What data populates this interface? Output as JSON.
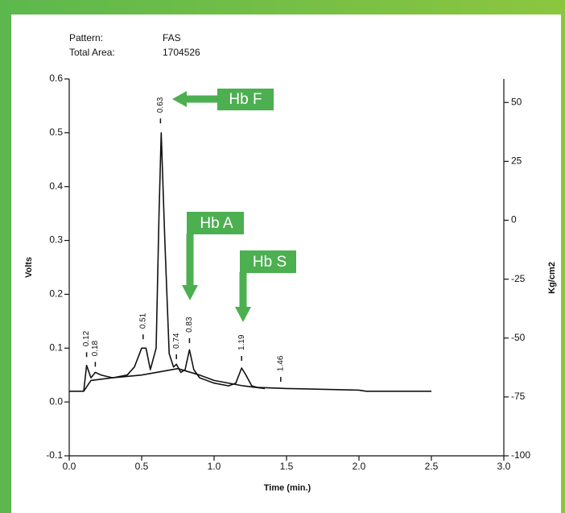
{
  "chart_data": {
    "type": "line",
    "info": [
      {
        "label": "Pattern:",
        "value": "FAS"
      },
      {
        "label": "Total Area:",
        "value": "1704526"
      }
    ],
    "xlabel": "Time (min.)",
    "ylabel": "Volts",
    "y2label": "Kg/cm2",
    "xlim": [
      0,
      3
    ],
    "xticks": [
      {
        "value": 0,
        "label": "0.0"
      },
      0.5,
      {
        "value": 1,
        "label": "1.0"
      },
      1.5,
      {
        "value": 2,
        "label": "2.0"
      },
      2.5,
      {
        "value": 3,
        "label": "3.0"
      }
    ],
    "ylim": [
      -0.1,
      0.6
    ],
    "yticks": [
      -0.1,
      {
        "value": 0,
        "label": "0.0"
      },
      0.1,
      0.2,
      0.3,
      0.4,
      0.5,
      0.6
    ],
    "y2lim": [
      -100,
      60
    ],
    "y2ticks": [
      -100,
      -75,
      -50,
      -25,
      0,
      25,
      50
    ],
    "series": [
      {
        "color": "#111111",
        "x": [
          0,
          0.1,
          0.12,
          0.15,
          0.18,
          0.22,
          0.3,
          0.4,
          0.45,
          0.5,
          0.53,
          0.56,
          0.6,
          0.62,
          0.635,
          0.66,
          0.69,
          0.72,
          0.74,
          0.77,
          0.8,
          0.83,
          0.86,
          0.9,
          1.0,
          1.1,
          1.15,
          1.19,
          1.22,
          1.26,
          1.3,
          1.5,
          2.0,
          2.05,
          2.5
        ],
        "values": [
          0.02,
          0.02,
          0.068,
          0.045,
          0.055,
          0.05,
          0.045,
          0.05,
          0.065,
          0.1,
          0.1,
          0.06,
          0.1,
          0.35,
          0.5,
          0.3,
          0.09,
          0.065,
          0.07,
          0.055,
          0.06,
          0.097,
          0.06,
          0.045,
          0.035,
          0.03,
          0.035,
          0.063,
          0.05,
          0.03,
          0.027,
          0.025,
          0.022,
          0.02,
          0.02
        ]
      },
      {
        "color": "#111111",
        "x": [
          0.1,
          0.15,
          0.3,
          0.5,
          0.75,
          0.9,
          1.0,
          1.2,
          1.35
        ],
        "values": [
          0.02,
          0.04,
          0.045,
          0.05,
          0.062,
          0.05,
          0.04,
          0.03,
          0.025
        ]
      }
    ],
    "peaks": [
      {
        "x": 0.12,
        "y": 0.088
      },
      {
        "x": 0.18,
        "y": 0.07
      },
      {
        "x": 0.51,
        "y": 0.121
      },
      {
        "x": 0.63,
        "y": 0.522
      },
      {
        "x": 0.74,
        "y": 0.084
      },
      {
        "x": 0.83,
        "y": 0.114
      },
      {
        "x": 1.19,
        "y": 0.081
      },
      {
        "x": 1.46,
        "y": 0.042
      }
    ],
    "annotations": [
      "Hb F",
      "Hb A",
      "Hb S"
    ]
  }
}
